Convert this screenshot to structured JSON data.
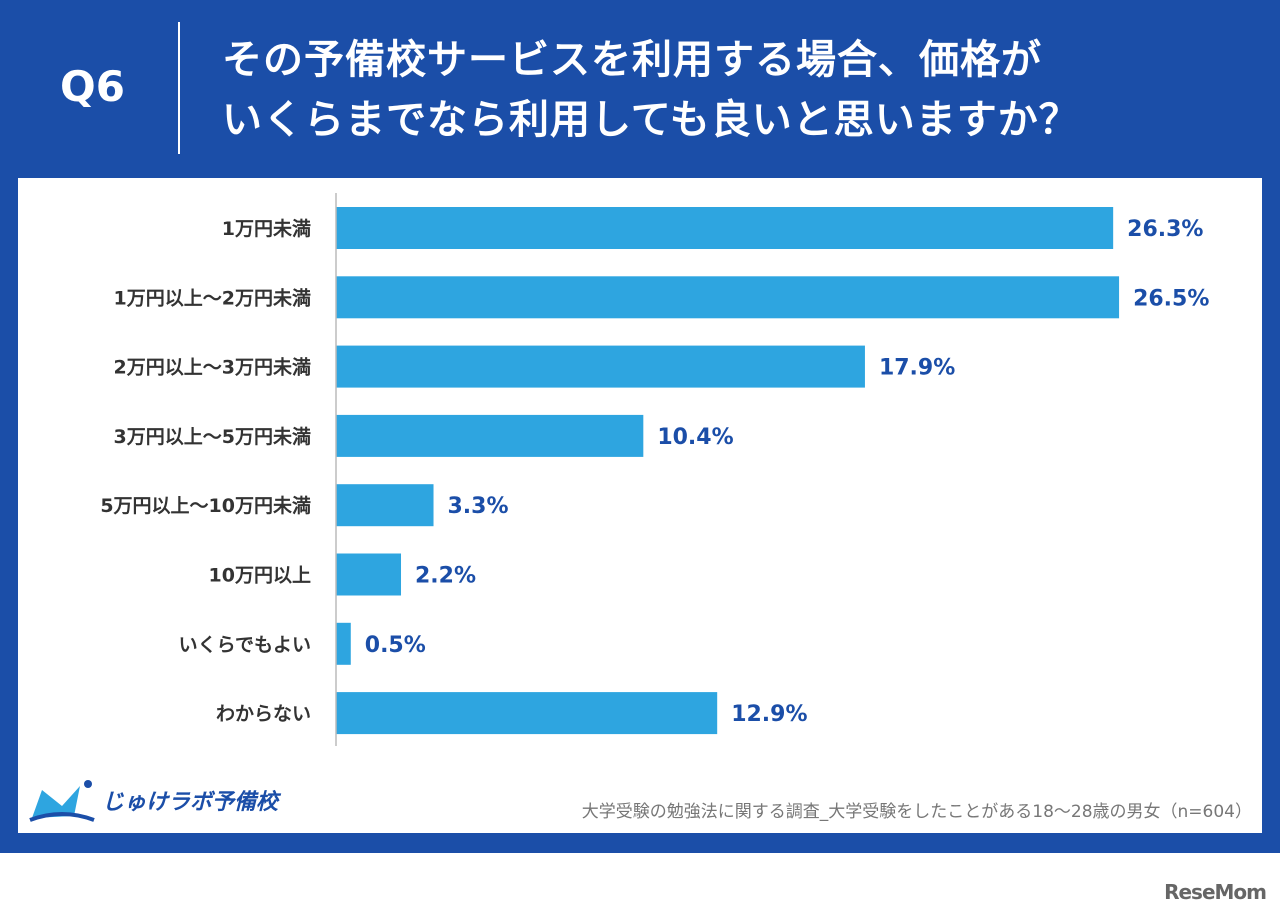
{
  "header": {
    "question_no": "Q6",
    "title_line1": "その予備校サービスを利用する場合、価格が",
    "title_line2": "いくらまでなら利用しても良いと思いますか？"
  },
  "chart_data": {
    "type": "bar",
    "orientation": "horizontal",
    "categories": [
      "1万円未満",
      "1万円以上～2万円未満",
      "2万円以上～3万円未満",
      "3万円以上～5万円未満",
      "5万円以上～10万円未満",
      "10万円以上",
      "いくらでもよい",
      "わからない"
    ],
    "values": [
      26.3,
      26.5,
      17.9,
      10.4,
      3.3,
      2.2,
      0.5,
      12.9
    ],
    "value_labels": [
      "26.3%",
      "26.5%",
      "17.9%",
      "10.4%",
      "3.3%",
      "2.2%",
      "0.5%",
      "12.9%"
    ],
    "bar_color": "#2ea5e0",
    "label_color": "#1b4ea8",
    "grid": false
  },
  "footer": {
    "logo_text": "じゅけラボ予備校",
    "source": "大学受験の勉強法に関する調査_大学受験をしたことがある18～28歳の男女（n=604）",
    "watermark": "ReseMom"
  }
}
